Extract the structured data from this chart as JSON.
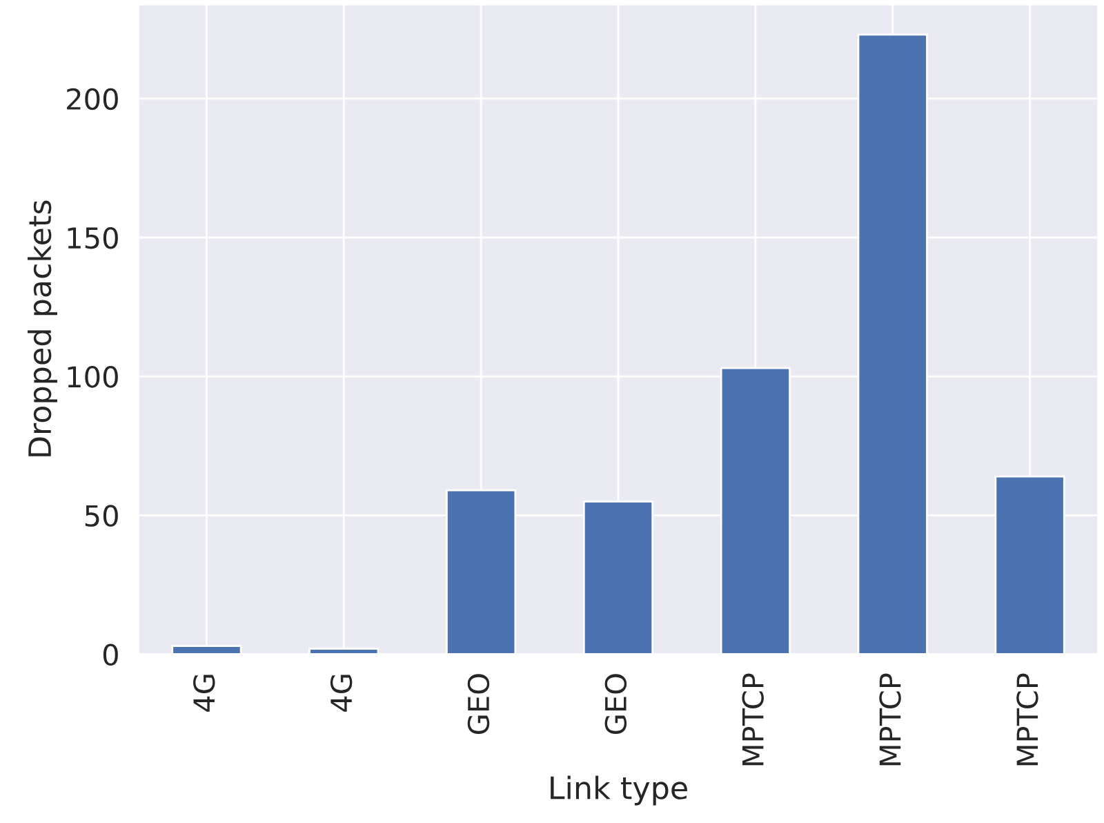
{
  "chart_data": {
    "type": "bar",
    "xlabel": "Link type",
    "ylabel": "Dropped packets",
    "categories": [
      "4G",
      "4G",
      "GEO",
      "GEO",
      "MPTCP",
      "MPTCP",
      "MPTCP"
    ],
    "values": [
      3,
      2,
      59,
      55,
      103,
      223,
      64
    ],
    "color": "#4c72b0",
    "ylim": [
      0,
      234
    ],
    "yticks": [
      0,
      50,
      100,
      150,
      200
    ],
    "grid": true
  }
}
